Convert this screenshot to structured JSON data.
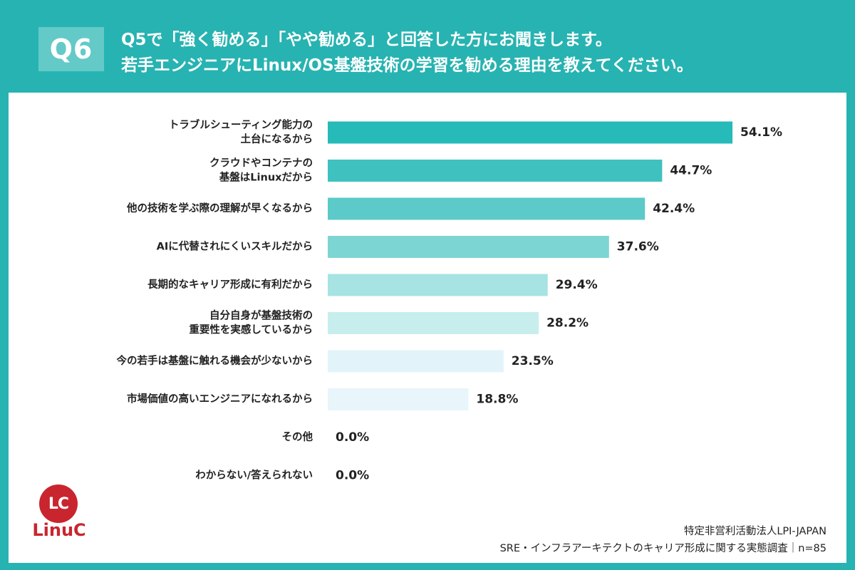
{
  "header": {
    "badge": "Q6",
    "question_line1": "Q5で「強く勧める」「やや勧める」と回答した方にお聞きします。",
    "question_line2": "若手エンジニアにLinux/OS基盤技術の学習を勧める理由を教えてください。"
  },
  "logo": {
    "mark": "LC",
    "name": "LinuC"
  },
  "source": {
    "org": "特定非営利活動法人LPI-JAPAN",
    "survey": "SRE・インフラアーキテクトのキャリア形成に関する実態調査｜n=85"
  },
  "colors": {
    "background": "#27b3b1",
    "panel": "#ffffff",
    "bars": [
      "#26bab8",
      "#3fc1bf",
      "#5bcac8",
      "#7dd5d3",
      "#a6e3e2",
      "#c7eeed",
      "#e2f4fa",
      "#e8f5fb",
      "#eef8fc",
      "#eef8fc"
    ]
  },
  "chart_data": {
    "type": "bar",
    "orientation": "horizontal",
    "title": "",
    "unit": "%",
    "categories": [
      [
        "トラブルシューティング能力の",
        "土台になるから"
      ],
      [
        "クラウドやコンテナの",
        "基盤はLinuxだから"
      ],
      [
        "他の技術を学ぶ際の理解が早くなるから"
      ],
      [
        "AIに代替されにくいスキルだから"
      ],
      [
        "長期的なキャリア形成に有利だから"
      ],
      [
        "自分自身が基盤技術の",
        "重要性を実感しているから"
      ],
      [
        "今の若手は基盤に触れる機会が少ないから"
      ],
      [
        "市場価値の高いエンジニアになれるから"
      ],
      [
        "その他"
      ],
      [
        "わからない/答えられない"
      ]
    ],
    "values": [
      54.1,
      44.7,
      42.4,
      37.6,
      29.4,
      28.2,
      23.5,
      18.8,
      0.0,
      0.0
    ],
    "value_labels": [
      "54.1%",
      "44.7%",
      "42.4%",
      "37.6%",
      "29.4%",
      "28.2%",
      "23.5%",
      "18.8%",
      "0.0%",
      "0.0%"
    ],
    "xlim": [
      0,
      60
    ],
    "grid": false,
    "legend": "none"
  }
}
